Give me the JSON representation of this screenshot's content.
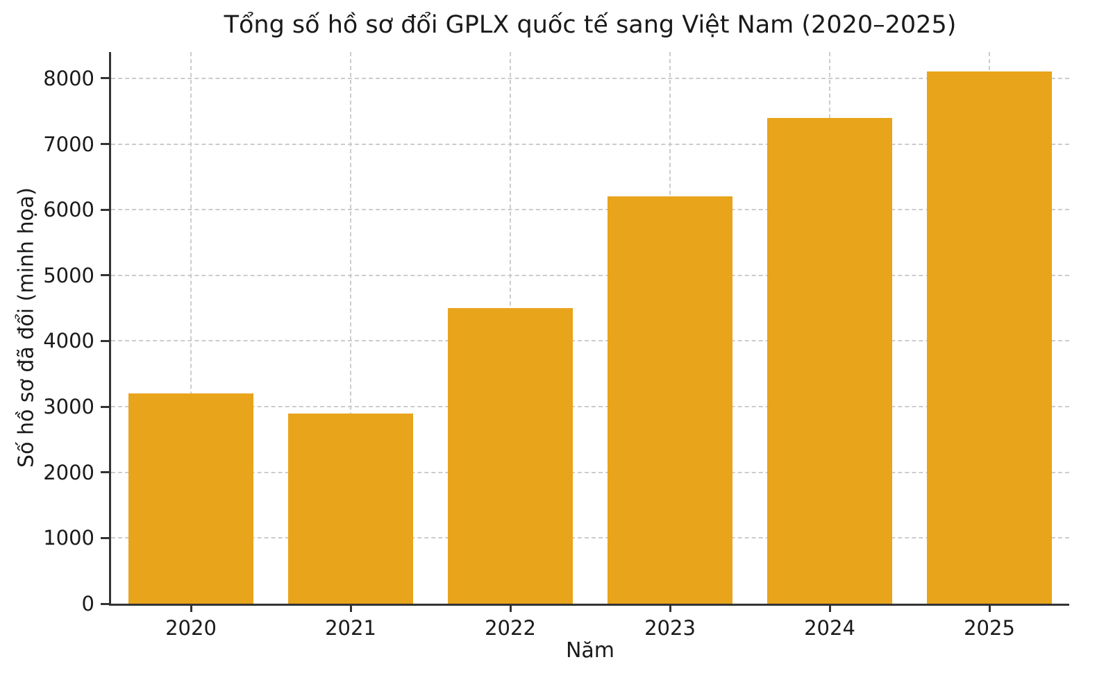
{
  "chart_data": {
    "type": "bar",
    "title": "Tổng số hồ sơ đổi GPLX quốc tế sang Việt Nam (2020–2025)",
    "xlabel": "Năm",
    "ylabel": "Số hồ sơ đã đổi (minh họa)",
    "categories": [
      "2020",
      "2021",
      "2022",
      "2023",
      "2024",
      "2025"
    ],
    "values": [
      3200,
      2900,
      4500,
      6200,
      7400,
      8100
    ],
    "yticks": [
      0,
      1000,
      2000,
      3000,
      4000,
      5000,
      6000,
      7000,
      8000
    ],
    "ylim": [
      0,
      8400
    ],
    "grid": true,
    "legend": "none",
    "bar_color": "#E8A41B",
    "grid_color": "#cccccc",
    "axis_color": "#333333",
    "text_color": "#1a1a1a"
  }
}
